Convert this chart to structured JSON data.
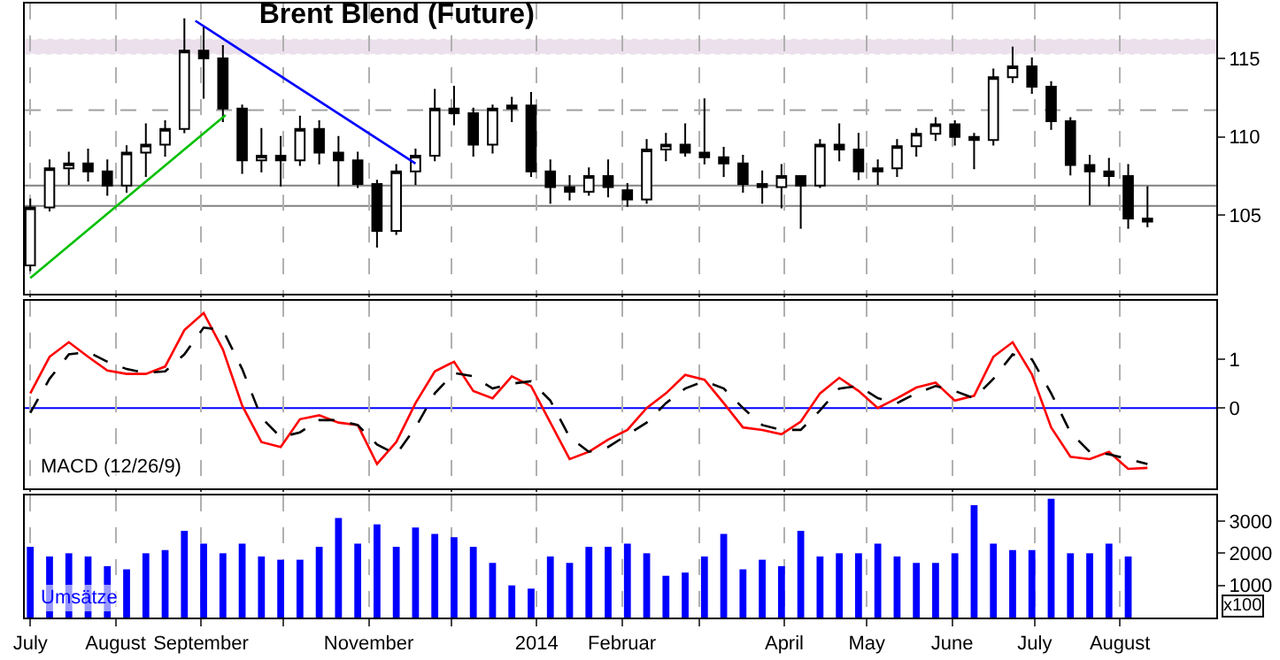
{
  "chart_data": [
    {
      "type": "candlestick",
      "title": "Brent Blend (Future)",
      "color": "#000000",
      "x": [
        "2013-07-01",
        "2013-07-08",
        "2013-07-15",
        "2013-07-22",
        "2013-07-29",
        "2013-08-05",
        "2013-08-12",
        "2013-08-19",
        "2013-08-26",
        "2013-09-02",
        "2013-09-09",
        "2013-09-16",
        "2013-09-23",
        "2013-09-30",
        "2013-10-07",
        "2013-10-14",
        "2013-10-21",
        "2013-10-28",
        "2013-11-04",
        "2013-11-11",
        "2013-11-18",
        "2013-11-25",
        "2013-12-02",
        "2013-12-09",
        "2013-12-16",
        "2013-12-23",
        "2013-12-30",
        "2014-01-06",
        "2014-01-13",
        "2014-01-20",
        "2014-01-27",
        "2014-02-03",
        "2014-02-10",
        "2014-02-17",
        "2014-02-24",
        "2014-03-03",
        "2014-03-10",
        "2014-03-17",
        "2014-03-24",
        "2014-03-31",
        "2014-04-07",
        "2014-04-14",
        "2014-04-21",
        "2014-04-28",
        "2014-05-05",
        "2014-05-12",
        "2014-05-19",
        "2014-05-26",
        "2014-06-02",
        "2014-06-09",
        "2014-06-16",
        "2014-06-23",
        "2014-06-30",
        "2014-07-07",
        "2014-07-14",
        "2014-07-21",
        "2014-07-28",
        "2014-08-04",
        "2014-08-11"
      ],
      "ohlc": [
        [
          101.8,
          106.0,
          101.5,
          105.5
        ],
        [
          105.5,
          108.5,
          105.3,
          108.0
        ],
        [
          108.0,
          109.0,
          107.0,
          108.3
        ],
        [
          108.3,
          109.2,
          107.2,
          107.8
        ],
        [
          107.8,
          108.5,
          106.3,
          106.9
        ],
        [
          106.9,
          109.4,
          106.5,
          109.0
        ],
        [
          109.0,
          110.8,
          107.5,
          109.5
        ],
        [
          109.5,
          111.0,
          108.8,
          110.5
        ],
        [
          110.5,
          117.5,
          110.3,
          115.5
        ],
        [
          115.5,
          117.0,
          112.5,
          115.0
        ],
        [
          115.0,
          115.8,
          111.0,
          111.8
        ],
        [
          111.8,
          112.0,
          107.7,
          108.5
        ],
        [
          108.5,
          110.5,
          107.8,
          108.8
        ],
        [
          108.8,
          110.0,
          106.9,
          108.5
        ],
        [
          108.5,
          111.3,
          108.2,
          110.5
        ],
        [
          110.5,
          111.0,
          108.3,
          109.0
        ],
        [
          109.0,
          110.0,
          106.9,
          108.5
        ],
        [
          108.5,
          109.0,
          106.8,
          107.0
        ],
        [
          107.0,
          107.2,
          103.0,
          104.0
        ],
        [
          104.0,
          108.2,
          103.8,
          107.8
        ],
        [
          107.8,
          109.2,
          107.0,
          108.8
        ],
        [
          108.8,
          113.0,
          108.5,
          111.8
        ],
        [
          111.8,
          113.2,
          110.8,
          111.5
        ],
        [
          111.5,
          111.8,
          108.8,
          109.5
        ],
        [
          109.5,
          112.0,
          109.0,
          111.8
        ],
        [
          111.8,
          112.5,
          111.0,
          112.0
        ],
        [
          112.0,
          112.8,
          107.5,
          107.8
        ],
        [
          107.8,
          108.5,
          105.8,
          106.8
        ],
        [
          106.8,
          107.5,
          106.0,
          106.5
        ],
        [
          106.5,
          108.0,
          106.3,
          107.5
        ],
        [
          107.5,
          108.5,
          106.2,
          106.8
        ],
        [
          106.6,
          107.0,
          105.6,
          106.0
        ],
        [
          106.0,
          109.8,
          105.8,
          109.2
        ],
        [
          109.2,
          110.2,
          108.5,
          109.5
        ],
        [
          109.5,
          110.8,
          108.8,
          109.0
        ],
        [
          109.0,
          112.4,
          108.3,
          108.7
        ],
        [
          108.7,
          109.3,
          107.5,
          108.3
        ],
        [
          108.3,
          108.8,
          106.5,
          107.0
        ],
        [
          107.0,
          107.8,
          105.8,
          106.8
        ],
        [
          106.8,
          108.2,
          105.5,
          107.5
        ],
        [
          107.5,
          107.5,
          104.2,
          106.9
        ],
        [
          106.9,
          109.8,
          106.8,
          109.5
        ],
        [
          109.5,
          110.8,
          108.5,
          109.2
        ],
        [
          109.2,
          110.2,
          107.3,
          107.8
        ],
        [
          107.8,
          108.5,
          107.0,
          108.0
        ],
        [
          108.0,
          109.8,
          107.5,
          109.4
        ],
        [
          109.4,
          110.5,
          108.8,
          110.2
        ],
        [
          110.2,
          111.2,
          109.8,
          110.8
        ],
        [
          110.8,
          111.0,
          109.5,
          110.0
        ],
        [
          110.0,
          110.2,
          108.0,
          109.8
        ],
        [
          109.8,
          114.3,
          109.5,
          113.8
        ],
        [
          113.8,
          115.7,
          113.5,
          114.5
        ],
        [
          114.5,
          115.0,
          112.8,
          113.2
        ],
        [
          113.2,
          113.5,
          110.5,
          111.0
        ],
        [
          111.0,
          111.2,
          107.6,
          108.2
        ],
        [
          108.2,
          108.8,
          105.7,
          107.8
        ],
        [
          107.8,
          108.6,
          106.9,
          107.5
        ],
        [
          107.5,
          108.2,
          104.2,
          104.8
        ],
        [
          104.8,
          106.8,
          104.3,
          104.6
        ]
      ],
      "series": [
        {
          "type": "line",
          "color": "#0000ff",
          "x": [
            "2013-08-30",
            "2013-11-18"
          ],
          "values": [
            117.4,
            108.3
          ]
        },
        {
          "type": "line",
          "color": "#00c000",
          "x": [
            "2013-07-01",
            "2013-09-10"
          ],
          "values": [
            101.0,
            111.4
          ]
        }
      ],
      "ref_lines": [
        {
          "axis": "y",
          "value": 111.7,
          "label": null,
          "color": "#a0a0a0",
          "line_style": "dashed"
        },
        {
          "axis": "y",
          "value": 106.9,
          "label": null,
          "color": "#808080",
          "line_style": "solid"
        },
        {
          "axis": "y",
          "value": 105.6,
          "label": null,
          "color": "#808080",
          "line_style": "solid"
        }
      ],
      "bands": [
        {
          "axis": "y",
          "from": 115.3,
          "to": 116.2,
          "label": null,
          "color": "#c8a8c8"
        }
      ],
      "xlim": [
        "2013-06-29",
        "2014-09-05"
      ],
      "xticks": [
        {
          "value": "2013-07-01",
          "label": null
        },
        {
          "value": "2013-08-01",
          "label": null
        },
        {
          "value": "2013-09-01",
          "label": null
        },
        {
          "value": "2013-10-01",
          "label": null
        },
        {
          "value": "2013-11-01",
          "label": null
        },
        {
          "value": "2013-12-01",
          "label": null
        },
        {
          "value": "2014-01-01",
          "label": null
        },
        {
          "value": "2014-02-01",
          "label": null
        },
        {
          "value": "2014-03-01",
          "label": null
        },
        {
          "value": "2014-04-01",
          "label": null
        },
        {
          "value": "2014-05-01",
          "label": null
        },
        {
          "value": "2014-06-01",
          "label": null
        },
        {
          "value": "2014-07-01",
          "label": null
        },
        {
          "value": "2014-08-01",
          "label": null
        }
      ],
      "ylim": [
        100,
        118.5
      ],
      "yticks": [
        105,
        110,
        115
      ],
      "grid": "x",
      "tick_labels": "y"
    },
    {
      "type": "line",
      "annotations": [
        "MACD (12/26/9)"
      ],
      "x": [
        "2013-07-01",
        "2013-07-08",
        "2013-07-15",
        "2013-07-22",
        "2013-07-29",
        "2013-08-05",
        "2013-08-12",
        "2013-08-19",
        "2013-08-26",
        "2013-09-02",
        "2013-09-09",
        "2013-09-16",
        "2013-09-23",
        "2013-09-30",
        "2013-10-07",
        "2013-10-14",
        "2013-10-21",
        "2013-10-28",
        "2013-11-04",
        "2013-11-11",
        "2013-11-18",
        "2013-11-25",
        "2013-12-02",
        "2013-12-09",
        "2013-12-16",
        "2013-12-23",
        "2013-12-30",
        "2014-01-06",
        "2014-01-13",
        "2014-01-20",
        "2014-01-27",
        "2014-02-03",
        "2014-02-10",
        "2014-02-17",
        "2014-02-24",
        "2014-03-03",
        "2014-03-10",
        "2014-03-17",
        "2014-03-24",
        "2014-03-31",
        "2014-04-07",
        "2014-04-14",
        "2014-04-21",
        "2014-04-28",
        "2014-05-05",
        "2014-05-12",
        "2014-05-19",
        "2014-05-26",
        "2014-06-02",
        "2014-06-09",
        "2014-06-16",
        "2014-06-23",
        "2014-06-30",
        "2014-07-07",
        "2014-07-14",
        "2014-07-21",
        "2014-07-28",
        "2014-08-04",
        "2014-08-11"
      ],
      "series": [
        {
          "color": "#ff0000",
          "line_style": "solid",
          "values": [
            0.3,
            1.05,
            1.35,
            1.05,
            0.77,
            0.7,
            0.7,
            0.85,
            1.6,
            1.95,
            1.2,
            0.05,
            -0.7,
            -0.8,
            -0.23,
            -0.15,
            -0.3,
            -0.35,
            -1.15,
            -0.7,
            0.1,
            0.75,
            0.95,
            0.35,
            0.2,
            0.65,
            0.45,
            -0.3,
            -1.05,
            -0.9,
            -0.65,
            -0.45,
            0.0,
            0.3,
            0.68,
            0.58,
            0.1,
            -0.4,
            -0.45,
            -0.54,
            -0.28,
            0.3,
            0.62,
            0.35,
            0.0,
            0.2,
            0.42,
            0.52,
            0.15,
            0.25,
            1.05,
            1.35,
            0.69,
            -0.4,
            -1.0,
            -1.05,
            -0.9,
            -1.25,
            -1.23
          ]
        },
        {
          "color": "#000000",
          "line_style": "dashed",
          "values": [
            -0.1,
            0.6,
            1.1,
            1.15,
            0.95,
            0.8,
            0.72,
            0.75,
            1.1,
            1.65,
            1.6,
            0.8,
            -0.2,
            -0.6,
            -0.5,
            -0.25,
            -0.25,
            -0.35,
            -0.75,
            -0.95,
            -0.4,
            0.3,
            0.72,
            0.65,
            0.4,
            0.5,
            0.55,
            0.15,
            -0.6,
            -0.9,
            -0.8,
            -0.55,
            -0.3,
            0.1,
            0.4,
            0.55,
            0.4,
            0.0,
            -0.35,
            -0.45,
            -0.45,
            -0.05,
            0.4,
            0.45,
            0.2,
            0.1,
            0.3,
            0.45,
            0.35,
            0.2,
            0.6,
            1.1,
            1.0,
            0.3,
            -0.5,
            -0.9,
            -0.95,
            -1.05,
            -1.15
          ]
        }
      ],
      "ref_lines": [
        {
          "axis": "y",
          "value": 0,
          "label": null,
          "color": "#0000ff",
          "line_style": "solid"
        }
      ],
      "xlim": [
        "2013-06-29",
        "2014-09-05"
      ],
      "xticks": [
        {
          "value": "2013-07-01",
          "label": null
        },
        {
          "value": "2013-08-01",
          "label": null
        },
        {
          "value": "2013-09-01",
          "label": null
        },
        {
          "value": "2013-10-01",
          "label": null
        },
        {
          "value": "2013-11-01",
          "label": null
        },
        {
          "value": "2013-12-01",
          "label": null
        },
        {
          "value": "2014-01-01",
          "label": null
        },
        {
          "value": "2014-02-01",
          "label": null
        },
        {
          "value": "2014-03-01",
          "label": null
        },
        {
          "value": "2014-04-01",
          "label": null
        },
        {
          "value": "2014-05-01",
          "label": null
        },
        {
          "value": "2014-06-01",
          "label": null
        },
        {
          "value": "2014-07-01",
          "label": null
        },
        {
          "value": "2014-08-01",
          "label": null
        }
      ],
      "ylim": [
        -1.65,
        2.2
      ],
      "yticks": [
        0,
        1
      ],
      "grid": "x",
      "tick_labels": "y"
    },
    {
      "type": "bar",
      "color": "#0000ff",
      "annotations": [
        "Umsätze",
        "x100"
      ],
      "x": [
        "2013-07-01",
        "2013-07-08",
        "2013-07-15",
        "2013-07-22",
        "2013-07-29",
        "2013-08-05",
        "2013-08-12",
        "2013-08-19",
        "2013-08-26",
        "2013-09-02",
        "2013-09-09",
        "2013-09-16",
        "2013-09-23",
        "2013-09-30",
        "2013-10-07",
        "2013-10-14",
        "2013-10-21",
        "2013-10-28",
        "2013-11-04",
        "2013-11-11",
        "2013-11-18",
        "2013-11-25",
        "2013-12-02",
        "2013-12-09",
        "2013-12-16",
        "2013-12-23",
        "2013-12-30",
        "2014-01-06",
        "2014-01-13",
        "2014-01-20",
        "2014-01-27",
        "2014-02-03",
        "2014-02-10",
        "2014-02-17",
        "2014-02-24",
        "2014-03-03",
        "2014-03-10",
        "2014-03-17",
        "2014-03-24",
        "2014-03-31",
        "2014-04-07",
        "2014-04-14",
        "2014-04-21",
        "2014-04-28",
        "2014-05-05",
        "2014-05-12",
        "2014-05-19",
        "2014-05-26",
        "2014-06-02",
        "2014-06-09",
        "2014-06-16",
        "2014-06-23",
        "2014-06-30",
        "2014-07-07",
        "2014-07-14",
        "2014-07-21",
        "2014-07-28",
        "2014-08-04"
      ],
      "values": [
        2200,
        1900,
        2000,
        1900,
        1600,
        1500,
        2000,
        2100,
        2700,
        2300,
        2000,
        2300,
        1900,
        1800,
        1800,
        2200,
        3100,
        2300,
        2900,
        2200,
        2800,
        2600,
        2500,
        2200,
        1700,
        1000,
        900,
        1900,
        1700,
        2200,
        2200,
        2300,
        2000,
        1300,
        1400,
        1900,
        2600,
        1500,
        1800,
        1600,
        2700,
        1900,
        2000,
        2000,
        2300,
        1900,
        1700,
        1700,
        2000,
        3500,
        2300,
        2100,
        2100,
        3700,
        2000,
        2000,
        2300,
        1900
      ],
      "xlim": [
        "2013-06-29",
        "2014-09-05"
      ],
      "xticks": [
        {
          "value": "2013-07-01",
          "label": "July"
        },
        {
          "value": "2013-08-01",
          "label": "August"
        },
        {
          "value": "2013-09-01",
          "label": "September"
        },
        {
          "value": "2013-10-01",
          "label": null
        },
        {
          "value": "2013-11-01",
          "label": "November"
        },
        {
          "value": "2013-12-01",
          "label": null
        },
        {
          "value": "2014-01-01",
          "label": "2014"
        },
        {
          "value": "2014-02-01",
          "label": "Februar"
        },
        {
          "value": "2014-03-01",
          "label": null
        },
        {
          "value": "2014-04-01",
          "label": "April"
        },
        {
          "value": "2014-05-01",
          "label": "May"
        },
        {
          "value": "2014-06-01",
          "label": "June"
        },
        {
          "value": "2014-07-01",
          "label": "July"
        },
        {
          "value": "2014-08-01",
          "label": "August"
        }
      ],
      "ylim": [
        0,
        3800
      ],
      "yticks": [
        1000,
        2000,
        3000
      ],
      "grid": "x"
    }
  ]
}
